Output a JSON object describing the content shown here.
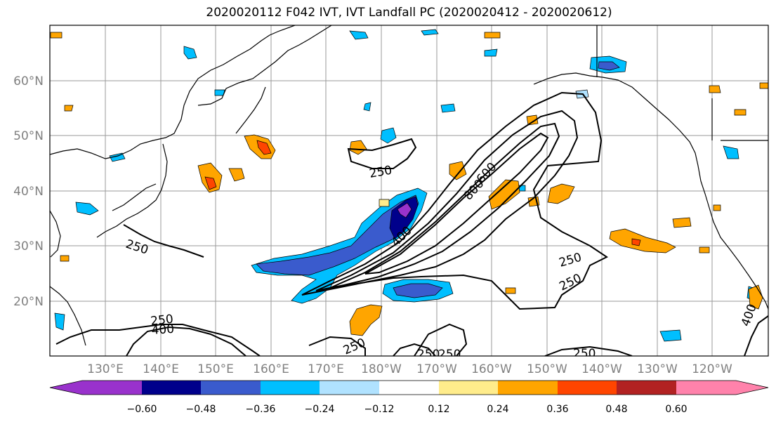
{
  "title": "2020020112 F042 IVT, IVT Landfall PC (2020020412 - 2020020612)",
  "lat_labels": [
    "60°N",
    "50°N",
    "40°N",
    "30°N",
    "20°N"
  ],
  "lon_labels": [
    "130°E",
    "140°E",
    "150°E",
    "160°E",
    "170°E",
    "180°W",
    "170°W",
    "160°W",
    "150°W",
    "140°W",
    "130°W",
    "120°W"
  ],
  "contour_labels": [
    "250",
    "250",
    "250",
    "250",
    "250",
    "250",
    "250",
    "250",
    "400",
    "400",
    "800",
    "600",
    "400",
    "250"
  ],
  "colorbar": {
    "labels": [
      "−0.60",
      "−0.48",
      "−0.36",
      "−0.24",
      "−0.12",
      "0.12",
      "0.24",
      "0.36",
      "0.48",
      "0.60"
    ],
    "colors": [
      "#9932CC",
      "#00008B",
      "#3A5BCD",
      "#00BFFF",
      "#B0E2FF",
      "#FFFFFF",
      "#FFEC8B",
      "#FFA500",
      "#FF4500",
      "#B22222",
      "#FF82AB"
    ]
  }
}
